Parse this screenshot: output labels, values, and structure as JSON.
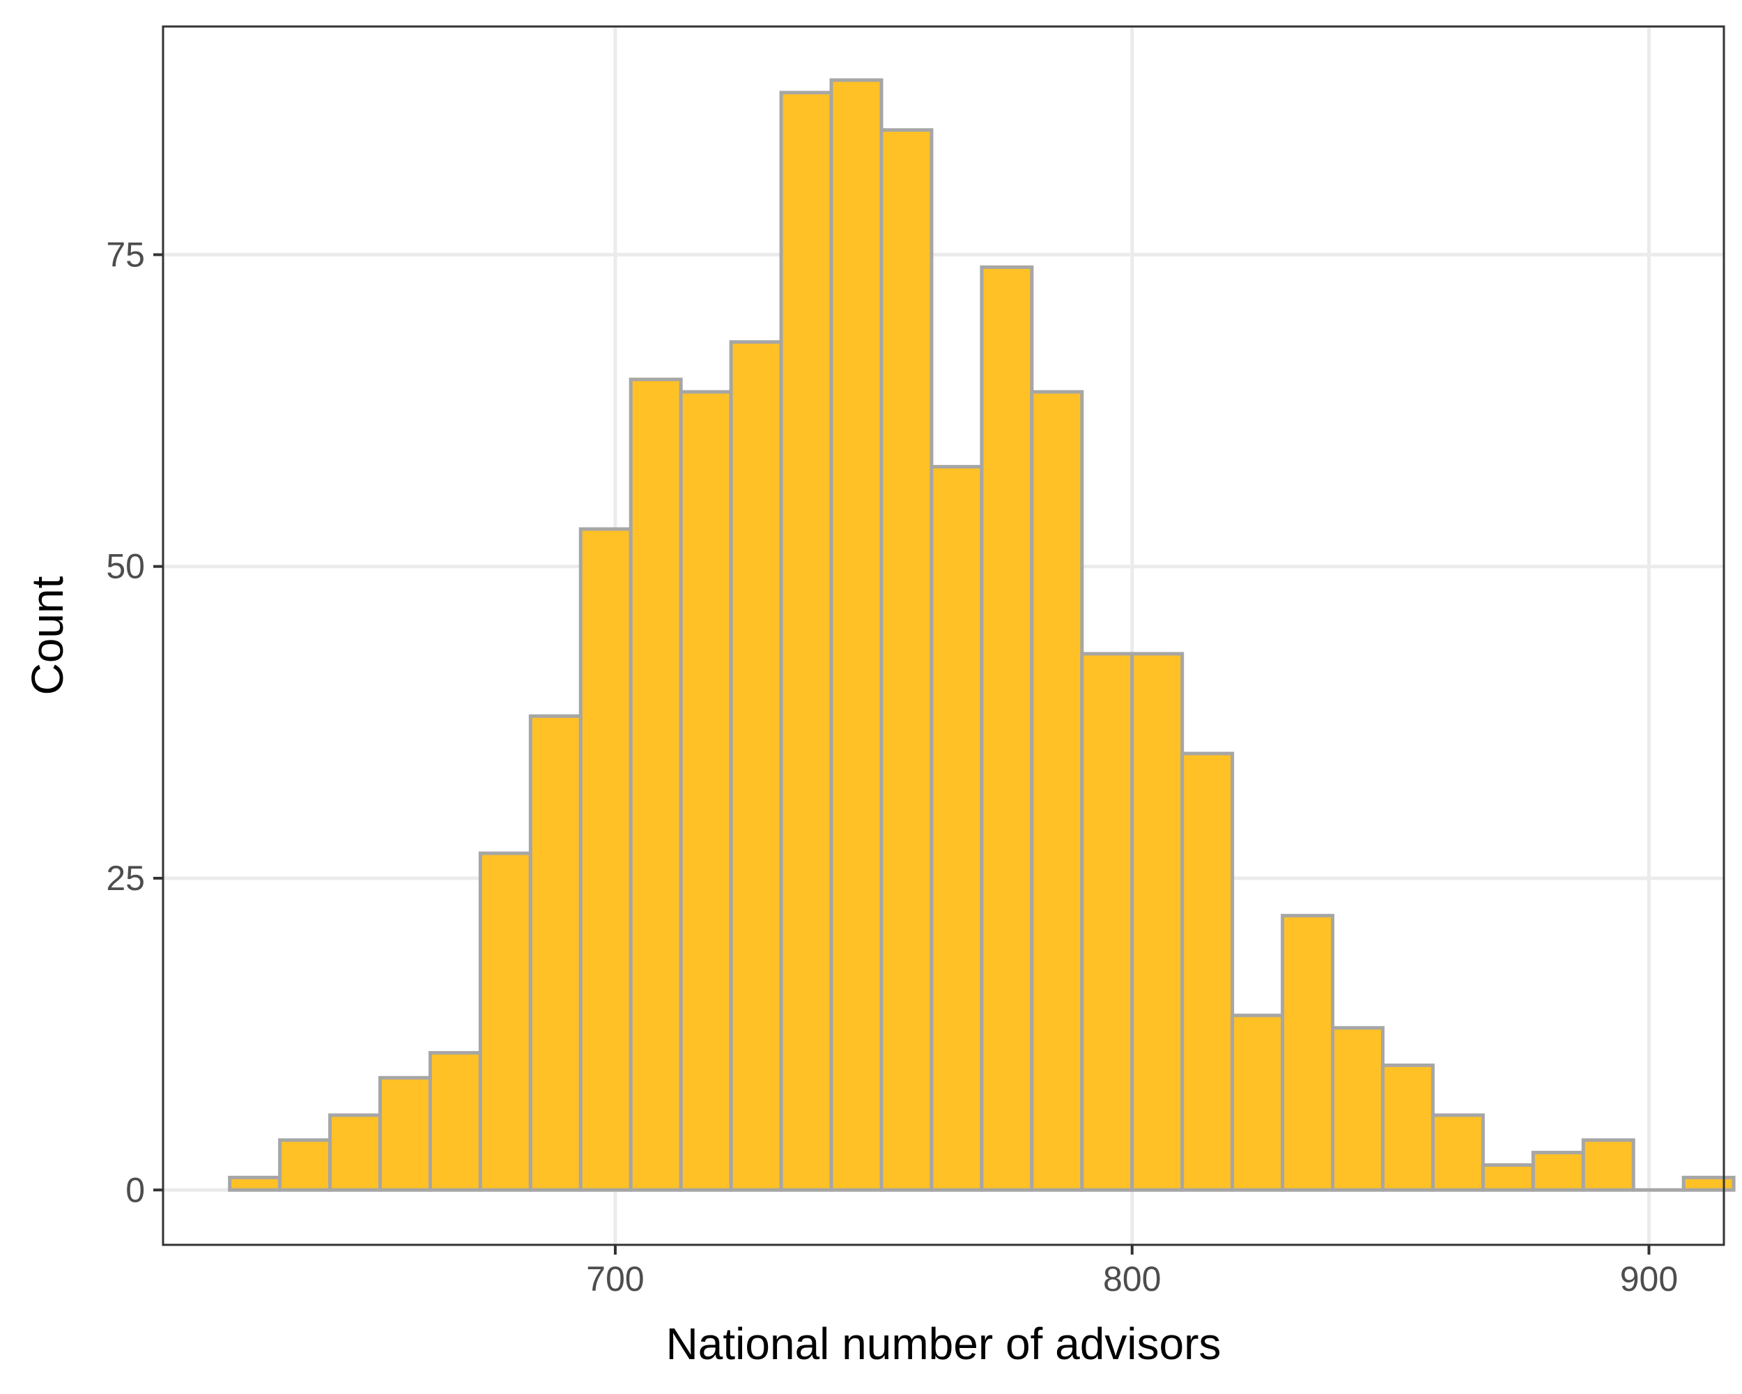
{
  "chart_data": {
    "type": "bar",
    "subtype": "histogram",
    "title": "",
    "xlabel": "National number of advisors",
    "ylabel": "Count",
    "xlim": [
      612.5,
      914.5
    ],
    "ylim": [
      -4.4,
      93.3
    ],
    "bin_width": 9.7,
    "xticks": [
      700,
      800,
      900
    ],
    "yticks": [
      0,
      25,
      50,
      75
    ],
    "grid": true,
    "bins": [
      {
        "x0": 625.4,
        "x1": 635.1,
        "count": 1
      },
      {
        "x0": 635.1,
        "x1": 644.8,
        "count": 4
      },
      {
        "x0": 644.8,
        "x1": 654.5,
        "count": 6
      },
      {
        "x0": 654.5,
        "x1": 664.2,
        "count": 9
      },
      {
        "x0": 664.2,
        "x1": 673.9,
        "count": 11
      },
      {
        "x0": 673.9,
        "x1": 683.6,
        "count": 27
      },
      {
        "x0": 683.6,
        "x1": 693.3,
        "count": 38
      },
      {
        "x0": 693.3,
        "x1": 703.0,
        "count": 53
      },
      {
        "x0": 703.0,
        "x1": 712.7,
        "count": 65
      },
      {
        "x0": 712.7,
        "x1": 722.4,
        "count": 64
      },
      {
        "x0": 722.4,
        "x1": 732.1,
        "count": 68
      },
      {
        "x0": 732.1,
        "x1": 741.8,
        "count": 88
      },
      {
        "x0": 741.8,
        "x1": 751.5,
        "count": 89
      },
      {
        "x0": 751.5,
        "x1": 761.2,
        "count": 85
      },
      {
        "x0": 761.2,
        "x1": 770.9,
        "count": 58
      },
      {
        "x0": 770.9,
        "x1": 780.6,
        "count": 74
      },
      {
        "x0": 780.6,
        "x1": 790.3,
        "count": 64
      },
      {
        "x0": 790.3,
        "x1": 800.0,
        "count": 43
      },
      {
        "x0": 800.0,
        "x1": 809.7,
        "count": 43
      },
      {
        "x0": 809.7,
        "x1": 819.4,
        "count": 35
      },
      {
        "x0": 819.4,
        "x1": 829.1,
        "count": 14
      },
      {
        "x0": 829.1,
        "x1": 838.8,
        "count": 22
      },
      {
        "x0": 838.8,
        "x1": 848.5,
        "count": 13
      },
      {
        "x0": 848.5,
        "x1": 858.2,
        "count": 10
      },
      {
        "x0": 858.2,
        "x1": 867.9,
        "count": 6
      },
      {
        "x0": 867.9,
        "x1": 877.6,
        "count": 2
      },
      {
        "x0": 877.6,
        "x1": 887.3,
        "count": 3
      },
      {
        "x0": 887.3,
        "x1": 897.0,
        "count": 4
      },
      {
        "x0": 897.0,
        "x1": 906.7,
        "count": 0
      },
      {
        "x0": 906.7,
        "x1": 916.4,
        "count": 1
      }
    ],
    "colors": {
      "bar_fill": "#FFC125",
      "bar_stroke": "#A6A6A6",
      "grid": "#EBEBEB",
      "panel_border": "#333333",
      "tick_text": "#4D4D4D",
      "title_text": "#000000",
      "background": "#FFFFFF"
    }
  }
}
